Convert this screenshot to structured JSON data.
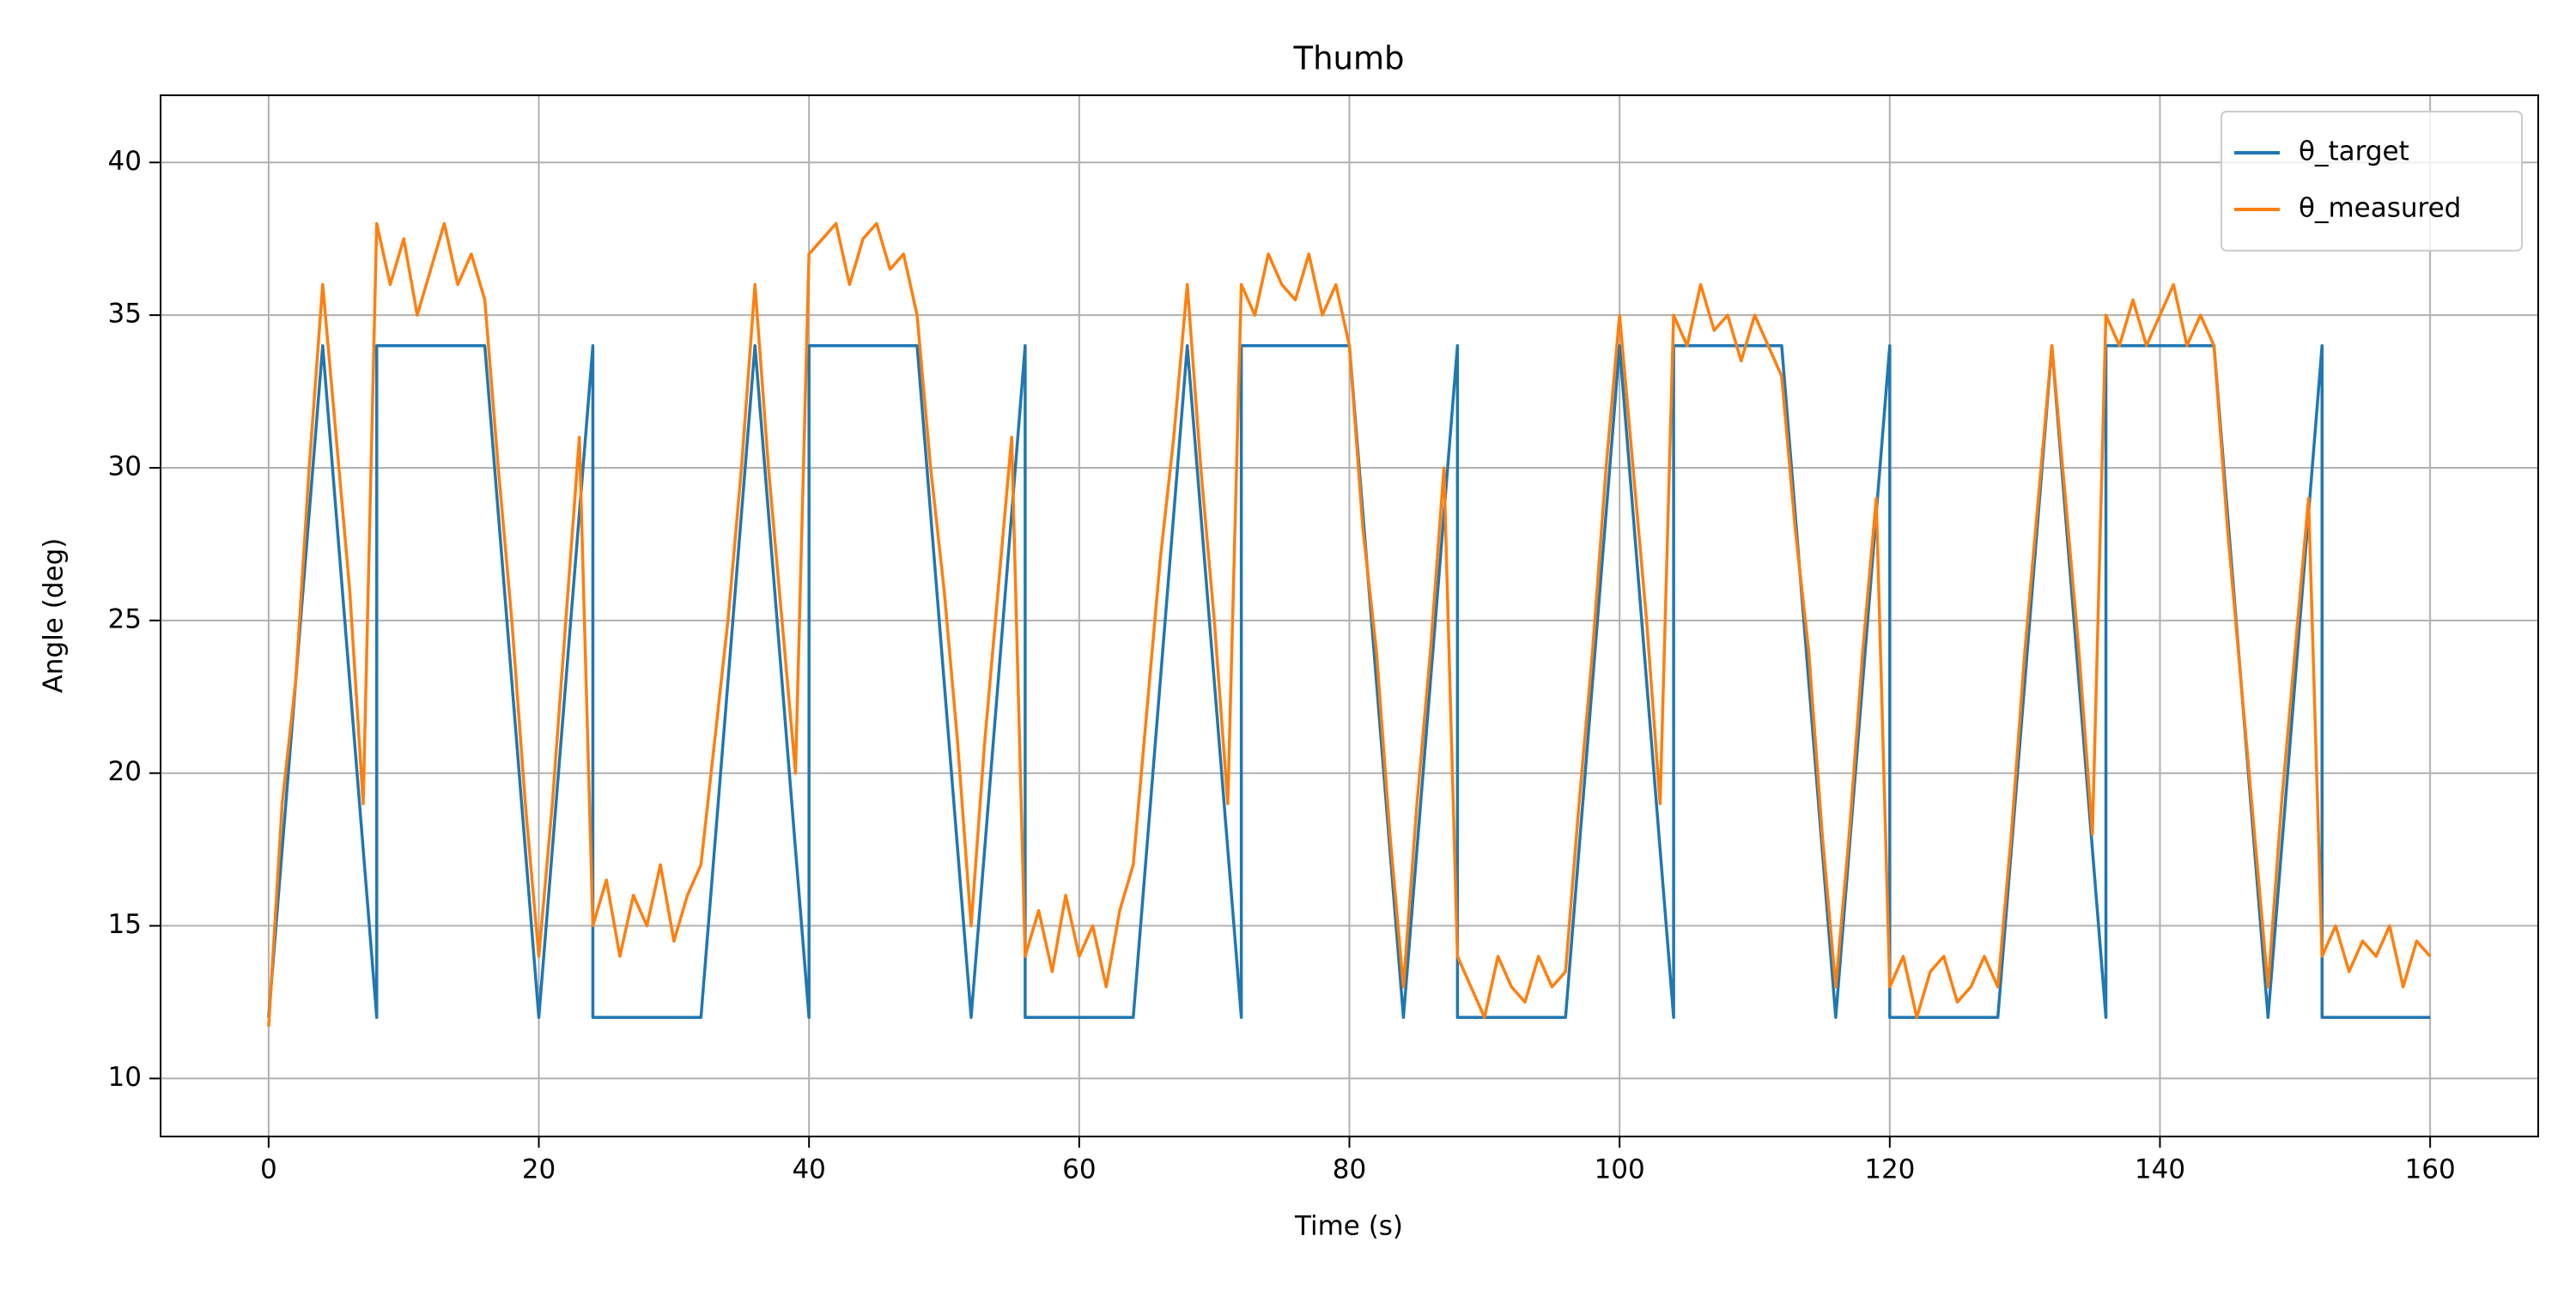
{
  "chart_data": {
    "type": "line",
    "title": "Thumb",
    "x_label": "Time (s)",
    "y_label": "Angle (deg)",
    "xlim": [
      -8,
      168
    ],
    "ylim": [
      8.1,
      42.2
    ],
    "xticks": [
      0,
      20,
      40,
      60,
      80,
      100,
      120,
      140,
      160
    ],
    "yticks": [
      10,
      15,
      20,
      25,
      30,
      35,
      40
    ],
    "grid": true,
    "legend": "upper right",
    "series": [
      {
        "name": "θ_target",
        "color": "#1f77b4",
        "x": [
          0,
          4,
          8,
          8,
          16,
          20,
          24,
          24,
          32,
          36,
          40,
          40,
          48,
          52,
          56,
          56,
          64,
          68,
          72,
          72,
          80,
          84,
          88,
          88,
          96,
          100,
          104,
          104,
          112,
          116,
          120,
          120,
          128,
          132,
          136,
          136,
          144,
          148,
          152,
          152,
          160
        ],
        "values": [
          12,
          34,
          12,
          34,
          34,
          12,
          34,
          12,
          12,
          34,
          12,
          34,
          34,
          12,
          34,
          12,
          12,
          34,
          12,
          34,
          34,
          12,
          34,
          12,
          12,
          34,
          12,
          34,
          34,
          12,
          34,
          12,
          12,
          34,
          12,
          34,
          34,
          12,
          34,
          12,
          12
        ]
      },
      {
        "name": "θ_measured",
        "color": "#ff7f0e",
        "x": [
          0,
          1,
          2,
          3,
          4,
          5,
          6,
          7,
          8,
          9,
          10,
          11,
          12,
          13,
          14,
          15,
          16,
          17,
          18,
          19,
          20,
          21,
          22,
          23,
          24,
          25,
          26,
          27,
          28,
          29,
          30,
          31,
          32,
          33,
          34,
          35,
          36,
          37,
          38,
          39,
          40,
          41,
          42,
          43,
          44,
          45,
          46,
          47,
          48,
          49,
          50,
          51,
          52,
          53,
          54,
          55,
          56,
          57,
          58,
          59,
          60,
          61,
          62,
          63,
          64,
          65,
          66,
          67,
          68,
          69,
          70,
          71,
          72,
          73,
          74,
          75,
          76,
          77,
          78,
          79,
          80,
          81,
          82,
          83,
          84,
          85,
          86,
          87,
          88,
          89,
          90,
          91,
          92,
          93,
          94,
          95,
          96,
          97,
          98,
          99,
          100,
          101,
          102,
          103,
          104,
          105,
          106,
          107,
          108,
          109,
          110,
          111,
          112,
          113,
          114,
          115,
          116,
          117,
          118,
          119,
          120,
          121,
          122,
          123,
          124,
          125,
          126,
          127,
          128,
          129,
          130,
          131,
          132,
          133,
          134,
          135,
          136,
          137,
          138,
          139,
          140,
          141,
          142,
          143,
          144,
          145,
          146,
          147,
          148,
          149,
          150,
          151,
          152,
          153,
          154,
          155,
          156,
          157,
          158,
          159,
          160
        ],
        "values": [
          11.7,
          19,
          23,
          30,
          36,
          31,
          26,
          19,
          38,
          36,
          37.5,
          35,
          36.5,
          38,
          36,
          37,
          35.5,
          30,
          25,
          19,
          14,
          19,
          25,
          31,
          15,
          16.5,
          14,
          16,
          15,
          17,
          14.5,
          16,
          17,
          21,
          25,
          30,
          36,
          30,
          25,
          20,
          37,
          37.5,
          38,
          36,
          37.5,
          38,
          36.5,
          37,
          35,
          30,
          26,
          21,
          15,
          21,
          26,
          31,
          14,
          15.5,
          13.5,
          16,
          14,
          15,
          13,
          15.5,
          17,
          22,
          27,
          31,
          36,
          30,
          25,
          19,
          36,
          35,
          37,
          36,
          35.5,
          37,
          35,
          36,
          34,
          28,
          24,
          18,
          13,
          19,
          24,
          30,
          14,
          13,
          12,
          14,
          13,
          12.5,
          14,
          13,
          13.5,
          19,
          24,
          30,
          35,
          30,
          25,
          19,
          35,
          34,
          36,
          34.5,
          35,
          33.5,
          35,
          34,
          33,
          28,
          24,
          18,
          13,
          18,
          24,
          29,
          13,
          14,
          12,
          13.5,
          14,
          12.5,
          13,
          14,
          13,
          18,
          24,
          29,
          34,
          29,
          24,
          18,
          35,
          34,
          35.5,
          34,
          35,
          36,
          34,
          35,
          34,
          28,
          23,
          18,
          13,
          19,
          24,
          29,
          14,
          15,
          13.5,
          14.5,
          14,
          15,
          13,
          14.5,
          14
        ]
      }
    ]
  }
}
